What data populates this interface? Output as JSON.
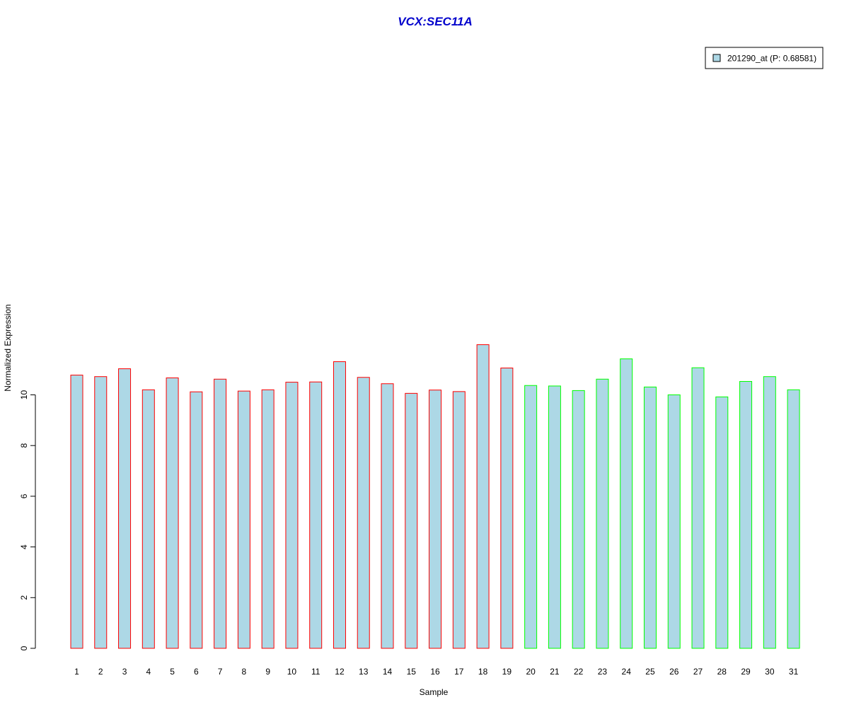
{
  "chart_data": {
    "type": "bar",
    "title": "VCX:SEC11A",
    "xlabel": "Sample",
    "ylabel": "Normalized Expression",
    "ylim": [
      0,
      12
    ],
    "y_ticks": [
      0,
      2,
      4,
      6,
      8,
      10
    ],
    "categories": [
      "1",
      "2",
      "3",
      "4",
      "5",
      "6",
      "7",
      "8",
      "9",
      "10",
      "11",
      "12",
      "13",
      "14",
      "15",
      "16",
      "17",
      "18",
      "19",
      "20",
      "21",
      "22",
      "23",
      "24",
      "25",
      "26",
      "27",
      "28",
      "29",
      "30",
      "31"
    ],
    "series": [
      {
        "name": "201290_at (P: 0.68581)",
        "values": [
          10.78,
          10.72,
          11.03,
          10.2,
          10.67,
          10.12,
          10.62,
          10.15,
          10.2,
          10.5,
          10.51,
          11.31,
          10.69,
          10.44,
          10.06,
          10.19,
          10.13,
          11.98,
          11.06,
          10.37,
          10.35,
          10.17,
          10.62,
          11.42,
          10.31,
          10.0,
          11.07,
          9.92,
          10.53,
          10.72,
          10.2
        ]
      }
    ],
    "groups": [
      {
        "from": 1,
        "to": 19,
        "border_color": "#ff0000"
      },
      {
        "from": 20,
        "to": 31,
        "border_color": "#00ff00"
      }
    ],
    "colors": {
      "bar_fill": "#add8e6",
      "title": "#0000cc",
      "axis": "#000000"
    },
    "legend": {
      "position": "top-right",
      "label": "201290_at (P: 0.68581)"
    },
    "grid": false
  }
}
